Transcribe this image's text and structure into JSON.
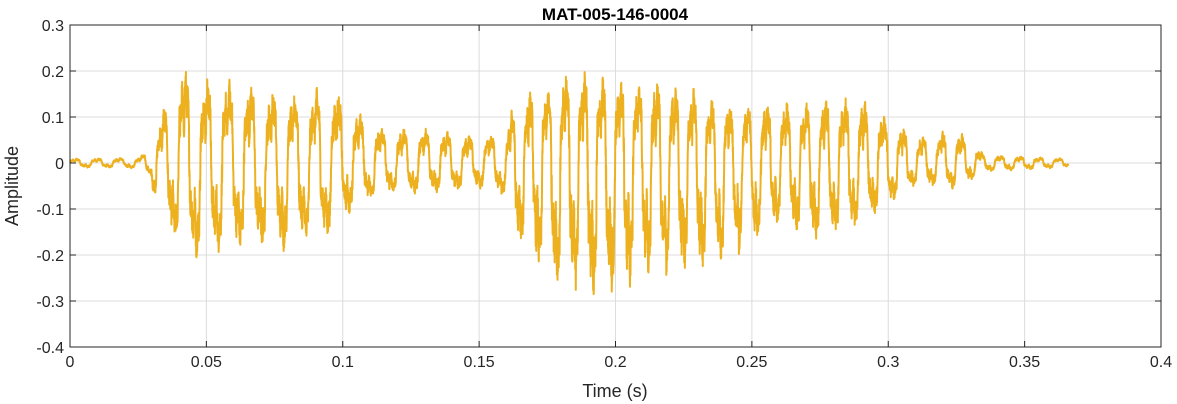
{
  "chart_data": {
    "type": "line",
    "title": "MAT-005-146-0004",
    "xlabel": "Time (s)",
    "ylabel": "Amplitude",
    "xlim": [
      0,
      0.4
    ],
    "ylim": [
      -0.4,
      0.3
    ],
    "xticks": [
      0,
      0.05,
      0.1,
      0.15,
      0.2,
      0.25,
      0.3,
      0.35,
      0.4
    ],
    "yticks": [
      -0.4,
      -0.3,
      -0.2,
      -0.1,
      0,
      0.1,
      0.2,
      0.3
    ],
    "xtick_labels": [
      "0",
      "0.05",
      "0.1",
      "0.15",
      "0.2",
      "0.25",
      "0.3",
      "0.35",
      "0.4"
    ],
    "ytick_labels": [
      "-0.4",
      "-0.3",
      "-0.2",
      "-0.1",
      "0",
      "0.1",
      "0.2",
      "0.3"
    ],
    "grid": true,
    "series": [
      {
        "color": "#EDB120",
        "duration": 0.366,
        "sample_rate": 16000,
        "envelope": [
          {
            "t": 0.0,
            "pos": 0.01,
            "neg": -0.01
          },
          {
            "t": 0.025,
            "pos": 0.012,
            "neg": -0.012
          },
          {
            "t": 0.029,
            "pos": 0.03,
            "neg": -0.03
          },
          {
            "t": 0.033,
            "pos": 0.1,
            "neg": -0.12
          },
          {
            "t": 0.04,
            "pos": 0.23,
            "neg": -0.2
          },
          {
            "t": 0.045,
            "pos": 0.2,
            "neg": -0.22
          },
          {
            "t": 0.06,
            "pos": 0.19,
            "neg": -0.2
          },
          {
            "t": 0.08,
            "pos": 0.16,
            "neg": -0.2
          },
          {
            "t": 0.095,
            "pos": 0.18,
            "neg": -0.17
          },
          {
            "t": 0.105,
            "pos": 0.12,
            "neg": -0.1
          },
          {
            "t": 0.115,
            "pos": 0.08,
            "neg": -0.07
          },
          {
            "t": 0.13,
            "pos": 0.08,
            "neg": -0.07
          },
          {
            "t": 0.15,
            "pos": 0.06,
            "neg": -0.06
          },
          {
            "t": 0.16,
            "pos": 0.07,
            "neg": -0.08
          },
          {
            "t": 0.163,
            "pos": 0.15,
            "neg": -0.17
          },
          {
            "t": 0.175,
            "pos": 0.18,
            "neg": -0.27
          },
          {
            "t": 0.185,
            "pos": 0.22,
            "neg": -0.3
          },
          {
            "t": 0.195,
            "pos": 0.2,
            "neg": -0.31
          },
          {
            "t": 0.21,
            "pos": 0.19,
            "neg": -0.27
          },
          {
            "t": 0.225,
            "pos": 0.18,
            "neg": -0.25
          },
          {
            "t": 0.24,
            "pos": 0.14,
            "neg": -0.23
          },
          {
            "t": 0.26,
            "pos": 0.14,
            "neg": -0.14
          },
          {
            "t": 0.275,
            "pos": 0.15,
            "neg": -0.18
          },
          {
            "t": 0.29,
            "pos": 0.15,
            "neg": -0.15
          },
          {
            "t": 0.3,
            "pos": 0.1,
            "neg": -0.1
          },
          {
            "t": 0.31,
            "pos": 0.06,
            "neg": -0.05
          },
          {
            "t": 0.325,
            "pos": 0.08,
            "neg": -0.06
          },
          {
            "t": 0.335,
            "pos": 0.02,
            "neg": -0.02
          },
          {
            "t": 0.366,
            "pos": 0.01,
            "neg": -0.01
          }
        ]
      }
    ]
  }
}
